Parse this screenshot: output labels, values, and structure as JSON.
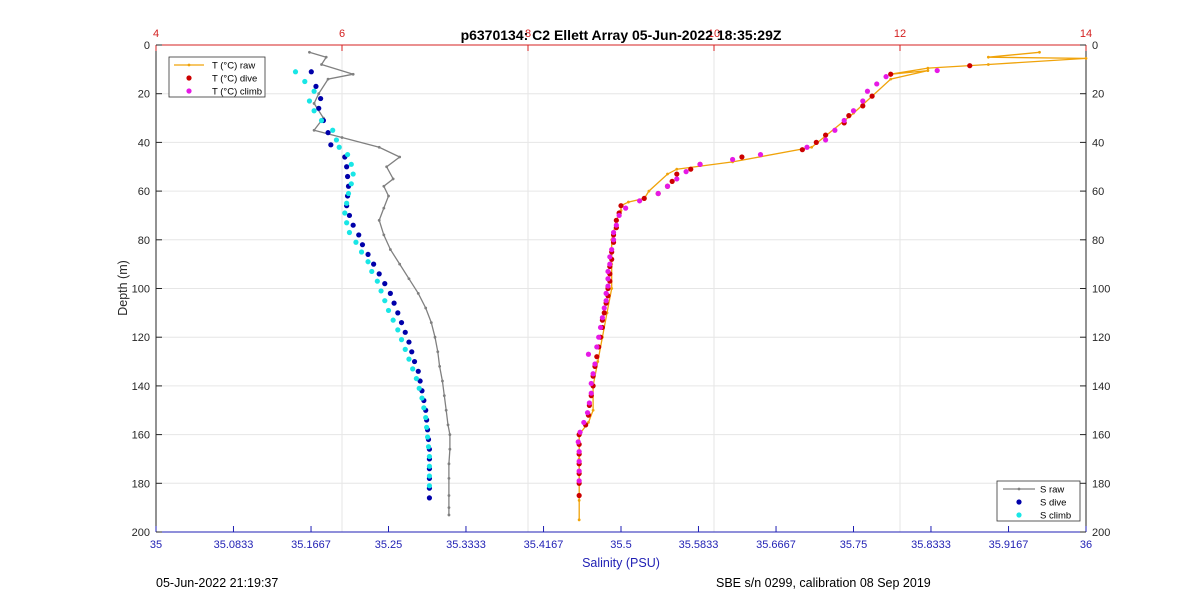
{
  "chart_data": {
    "type": "scatter",
    "title": "p6370134: C2 Ellett Array 05-Jun-2022 18:35:29Z",
    "xlabel": "Salinity (PSU)",
    "ylabel": "Depth (m)",
    "x_bottom": {
      "label": "Salinity (PSU)",
      "lim": [
        35,
        36
      ],
      "ticks": [
        35,
        35.0833,
        35.1667,
        35.25,
        35.3333,
        35.4167,
        35.5,
        35.5833,
        35.6667,
        35.75,
        35.8333,
        35.9167,
        36
      ],
      "tick_labels": [
        "35",
        "35.0833",
        "35.1667",
        "35.25",
        "35.3333",
        "35.4167",
        "35.5",
        "35.5833",
        "35.6667",
        "35.75",
        "35.8333",
        "35.9167",
        "36"
      ]
    },
    "x_top": {
      "label": "",
      "lim": [
        4,
        14
      ],
      "ticks": [
        4,
        6,
        8,
        10,
        12,
        14
      ],
      "tick_labels": [
        "4",
        "6",
        "8",
        "10",
        "12",
        "14"
      ]
    },
    "y": {
      "lim": [
        0,
        200
      ],
      "reversed": true,
      "ticks": [
        0,
        20,
        40,
        60,
        80,
        100,
        120,
        140,
        160,
        180,
        200
      ],
      "tick_labels": [
        "0",
        "20",
        "40",
        "60",
        "80",
        "100",
        "120",
        "140",
        "160",
        "180",
        "200"
      ]
    },
    "grid": true,
    "legend_temperature": {
      "placement": "top-left",
      "entries": [
        "T (°C) raw",
        "T (°C) dive",
        "T (°C) climb"
      ]
    },
    "legend_salinity": {
      "placement": "bottom-right",
      "entries": [
        "S raw",
        "S dive",
        "S climb"
      ]
    },
    "series": [
      {
        "name": "T (°C) raw",
        "axis": "top",
        "style": "line-dots",
        "color": "#f0a30a",
        "points": [
          [
            13.5,
            3
          ],
          [
            12.95,
            5
          ],
          [
            14.0,
            5.5
          ],
          [
            12.95,
            8
          ],
          [
            12.3,
            9.5
          ],
          [
            11.9,
            12
          ],
          [
            12.3,
            10.5
          ],
          [
            11.9,
            14
          ],
          [
            11.5,
            28
          ],
          [
            11.05,
            42
          ],
          [
            10.2,
            48
          ],
          [
            9.6,
            51
          ],
          [
            9.5,
            53
          ],
          [
            9.3,
            60
          ],
          [
            9.25,
            63
          ],
          [
            9.08,
            64.5
          ],
          [
            9.0,
            66
          ],
          [
            9.0,
            68
          ],
          [
            8.95,
            72
          ],
          [
            8.9,
            80
          ],
          [
            8.9,
            90
          ],
          [
            8.9,
            100
          ],
          [
            8.85,
            110
          ],
          [
            8.8,
            120
          ],
          [
            8.75,
            130
          ],
          [
            8.7,
            140
          ],
          [
            8.7,
            150
          ],
          [
            8.65,
            155
          ],
          [
            8.55,
            160
          ],
          [
            8.55,
            170
          ],
          [
            8.55,
            180
          ],
          [
            8.55,
            187
          ],
          [
            8.55,
            195
          ]
        ]
      },
      {
        "name": "T (°C) dive",
        "axis": "top",
        "style": "markers",
        "color": "#cc0000",
        "points": [
          [
            12.75,
            8.5
          ],
          [
            11.9,
            12
          ],
          [
            11.7,
            21
          ],
          [
            11.6,
            25
          ],
          [
            11.45,
            29
          ],
          [
            11.4,
            32
          ],
          [
            11.2,
            37
          ],
          [
            11.1,
            40
          ],
          [
            10.95,
            43
          ],
          [
            10.3,
            46
          ],
          [
            9.85,
            49
          ],
          [
            9.75,
            51
          ],
          [
            9.6,
            53
          ],
          [
            9.55,
            56
          ],
          [
            9.5,
            58
          ],
          [
            9.4,
            61
          ],
          [
            9.25,
            63
          ],
          [
            9.0,
            66
          ],
          [
            8.98,
            69
          ],
          [
            8.95,
            72
          ],
          [
            8.95,
            75
          ],
          [
            8.92,
            78
          ],
          [
            8.92,
            81
          ],
          [
            8.9,
            85
          ],
          [
            8.9,
            88
          ],
          [
            8.88,
            91
          ],
          [
            8.88,
            94
          ],
          [
            8.88,
            97
          ],
          [
            8.86,
            100
          ],
          [
            8.86,
            103
          ],
          [
            8.84,
            106
          ],
          [
            8.82,
            110
          ],
          [
            8.8,
            113
          ],
          [
            8.8,
            116
          ],
          [
            8.78,
            120
          ],
          [
            8.76,
            124
          ],
          [
            8.74,
            128
          ],
          [
            8.72,
            132
          ],
          [
            8.7,
            136
          ],
          [
            8.7,
            140
          ],
          [
            8.68,
            144
          ],
          [
            8.66,
            148
          ],
          [
            8.65,
            152
          ],
          [
            8.62,
            156
          ],
          [
            8.55,
            160
          ],
          [
            8.55,
            164
          ],
          [
            8.55,
            168
          ],
          [
            8.55,
            172
          ],
          [
            8.55,
            176
          ],
          [
            8.55,
            180
          ],
          [
            8.55,
            185
          ]
        ]
      },
      {
        "name": "T (°C) climb",
        "axis": "top",
        "style": "markers",
        "color": "#e619e6",
        "points": [
          [
            12.4,
            10.5
          ],
          [
            11.85,
            13
          ],
          [
            11.75,
            16
          ],
          [
            11.65,
            19
          ],
          [
            11.6,
            23
          ],
          [
            11.5,
            27
          ],
          [
            11.4,
            31
          ],
          [
            11.3,
            35
          ],
          [
            11.2,
            39
          ],
          [
            11.0,
            42
          ],
          [
            10.5,
            45
          ],
          [
            10.2,
            47
          ],
          [
            9.85,
            49
          ],
          [
            9.7,
            52
          ],
          [
            9.6,
            55
          ],
          [
            9.5,
            58
          ],
          [
            9.4,
            61
          ],
          [
            9.2,
            64
          ],
          [
            9.05,
            67
          ],
          [
            8.98,
            70
          ],
          [
            8.95,
            74
          ],
          [
            8.92,
            77
          ],
          [
            8.92,
            80
          ],
          [
            8.9,
            84
          ],
          [
            8.88,
            87
          ],
          [
            8.88,
            90
          ],
          [
            8.86,
            93
          ],
          [
            8.86,
            96
          ],
          [
            8.86,
            99
          ],
          [
            8.84,
            102
          ],
          [
            8.84,
            105
          ],
          [
            8.82,
            108
          ],
          [
            8.8,
            112
          ],
          [
            8.78,
            116
          ],
          [
            8.76,
            120
          ],
          [
            8.74,
            124
          ],
          [
            8.65,
            127
          ],
          [
            8.72,
            131
          ],
          [
            8.7,
            135
          ],
          [
            8.68,
            139
          ],
          [
            8.68,
            143
          ],
          [
            8.66,
            147
          ],
          [
            8.64,
            151
          ],
          [
            8.6,
            155
          ],
          [
            8.56,
            159
          ],
          [
            8.54,
            163
          ],
          [
            8.55,
            167
          ],
          [
            8.55,
            171
          ],
          [
            8.55,
            175
          ],
          [
            8.55,
            179
          ]
        ]
      },
      {
        "name": "S raw",
        "axis": "bottom",
        "style": "line-dots",
        "color": "#808080",
        "points": [
          [
            35.165,
            3
          ],
          [
            35.183,
            5
          ],
          [
            35.178,
            8
          ],
          [
            35.212,
            12
          ],
          [
            35.185,
            14
          ],
          [
            35.175,
            20
          ],
          [
            35.17,
            24
          ],
          [
            35.18,
            30
          ],
          [
            35.17,
            35
          ],
          [
            35.2,
            38
          ],
          [
            35.24,
            42
          ],
          [
            35.262,
            46
          ],
          [
            35.248,
            50
          ],
          [
            35.255,
            55
          ],
          [
            35.245,
            58
          ],
          [
            35.25,
            62
          ],
          [
            35.245,
            67
          ],
          [
            35.24,
            72
          ],
          [
            35.245,
            78
          ],
          [
            35.252,
            84
          ],
          [
            35.262,
            90
          ],
          [
            35.272,
            96
          ],
          [
            35.282,
            102
          ],
          [
            35.29,
            108
          ],
          [
            35.296,
            114
          ],
          [
            35.3,
            120
          ],
          [
            35.303,
            126
          ],
          [
            35.305,
            132
          ],
          [
            35.308,
            138
          ],
          [
            35.31,
            144
          ],
          [
            35.312,
            150
          ],
          [
            35.314,
            156
          ],
          [
            35.316,
            160
          ],
          [
            35.316,
            166
          ],
          [
            35.315,
            172
          ],
          [
            35.315,
            178
          ],
          [
            35.315,
            185
          ],
          [
            35.315,
            190
          ],
          [
            35.315,
            193
          ]
        ]
      },
      {
        "name": "S dive",
        "axis": "bottom",
        "style": "markers",
        "color": "#0000aa",
        "points": [
          [
            35.167,
            11
          ],
          [
            35.172,
            17
          ],
          [
            35.177,
            22
          ],
          [
            35.175,
            26
          ],
          [
            35.18,
            31
          ],
          [
            35.185,
            36
          ],
          [
            35.188,
            41
          ],
          [
            35.203,
            46
          ],
          [
            35.205,
            50
          ],
          [
            35.206,
            54
          ],
          [
            35.207,
            58
          ],
          [
            35.206,
            62
          ],
          [
            35.205,
            66
          ],
          [
            35.208,
            70
          ],
          [
            35.212,
            74
          ],
          [
            35.218,
            78
          ],
          [
            35.222,
            82
          ],
          [
            35.228,
            86
          ],
          [
            35.234,
            90
          ],
          [
            35.24,
            94
          ],
          [
            35.246,
            98
          ],
          [
            35.252,
            102
          ],
          [
            35.256,
            106
          ],
          [
            35.26,
            110
          ],
          [
            35.264,
            114
          ],
          [
            35.268,
            118
          ],
          [
            35.272,
            122
          ],
          [
            35.275,
            126
          ],
          [
            35.278,
            130
          ],
          [
            35.282,
            134
          ],
          [
            35.284,
            138
          ],
          [
            35.286,
            142
          ],
          [
            35.288,
            146
          ],
          [
            35.29,
            150
          ],
          [
            35.291,
            154
          ],
          [
            35.292,
            158
          ],
          [
            35.293,
            162
          ],
          [
            35.294,
            166
          ],
          [
            35.294,
            170
          ],
          [
            35.294,
            174
          ],
          [
            35.294,
            178
          ],
          [
            35.294,
            182
          ],
          [
            35.294,
            186
          ]
        ]
      },
      {
        "name": "S climb",
        "axis": "bottom",
        "style": "markers",
        "color": "#19e6e6",
        "points": [
          [
            35.15,
            11
          ],
          [
            35.16,
            15
          ],
          [
            35.17,
            19
          ],
          [
            35.165,
            23
          ],
          [
            35.17,
            27
          ],
          [
            35.178,
            31
          ],
          [
            35.19,
            35
          ],
          [
            35.194,
            39
          ],
          [
            35.197,
            42
          ],
          [
            35.206,
            45
          ],
          [
            35.21,
            49
          ],
          [
            35.212,
            53
          ],
          [
            35.21,
            57
          ],
          [
            35.207,
            61
          ],
          [
            35.205,
            65
          ],
          [
            35.203,
            69
          ],
          [
            35.205,
            73
          ],
          [
            35.208,
            77
          ],
          [
            35.215,
            81
          ],
          [
            35.221,
            85
          ],
          [
            35.228,
            89
          ],
          [
            35.232,
            93
          ],
          [
            35.238,
            97
          ],
          [
            35.242,
            101
          ],
          [
            35.246,
            105
          ],
          [
            35.25,
            109
          ],
          [
            35.255,
            113
          ],
          [
            35.26,
            117
          ],
          [
            35.264,
            121
          ],
          [
            35.268,
            125
          ],
          [
            35.272,
            129
          ],
          [
            35.276,
            133
          ],
          [
            35.28,
            137
          ],
          [
            35.283,
            141
          ],
          [
            35.286,
            145
          ],
          [
            35.288,
            149
          ],
          [
            35.29,
            153
          ],
          [
            35.291,
            157
          ],
          [
            35.292,
            161
          ],
          [
            35.293,
            165
          ],
          [
            35.294,
            169
          ],
          [
            35.294,
            173
          ],
          [
            35.294,
            177
          ],
          [
            35.294,
            181
          ]
        ]
      }
    ]
  },
  "footer": {
    "left": "05-Jun-2022 21:19:37",
    "right": "SBE s/n 0299, calibration 08 Sep 2019"
  },
  "colors": {
    "bottom_axis": "#1f1fb4",
    "top_axis": "#d42020",
    "grid": "#e6e6e6",
    "frame": "#262626"
  }
}
